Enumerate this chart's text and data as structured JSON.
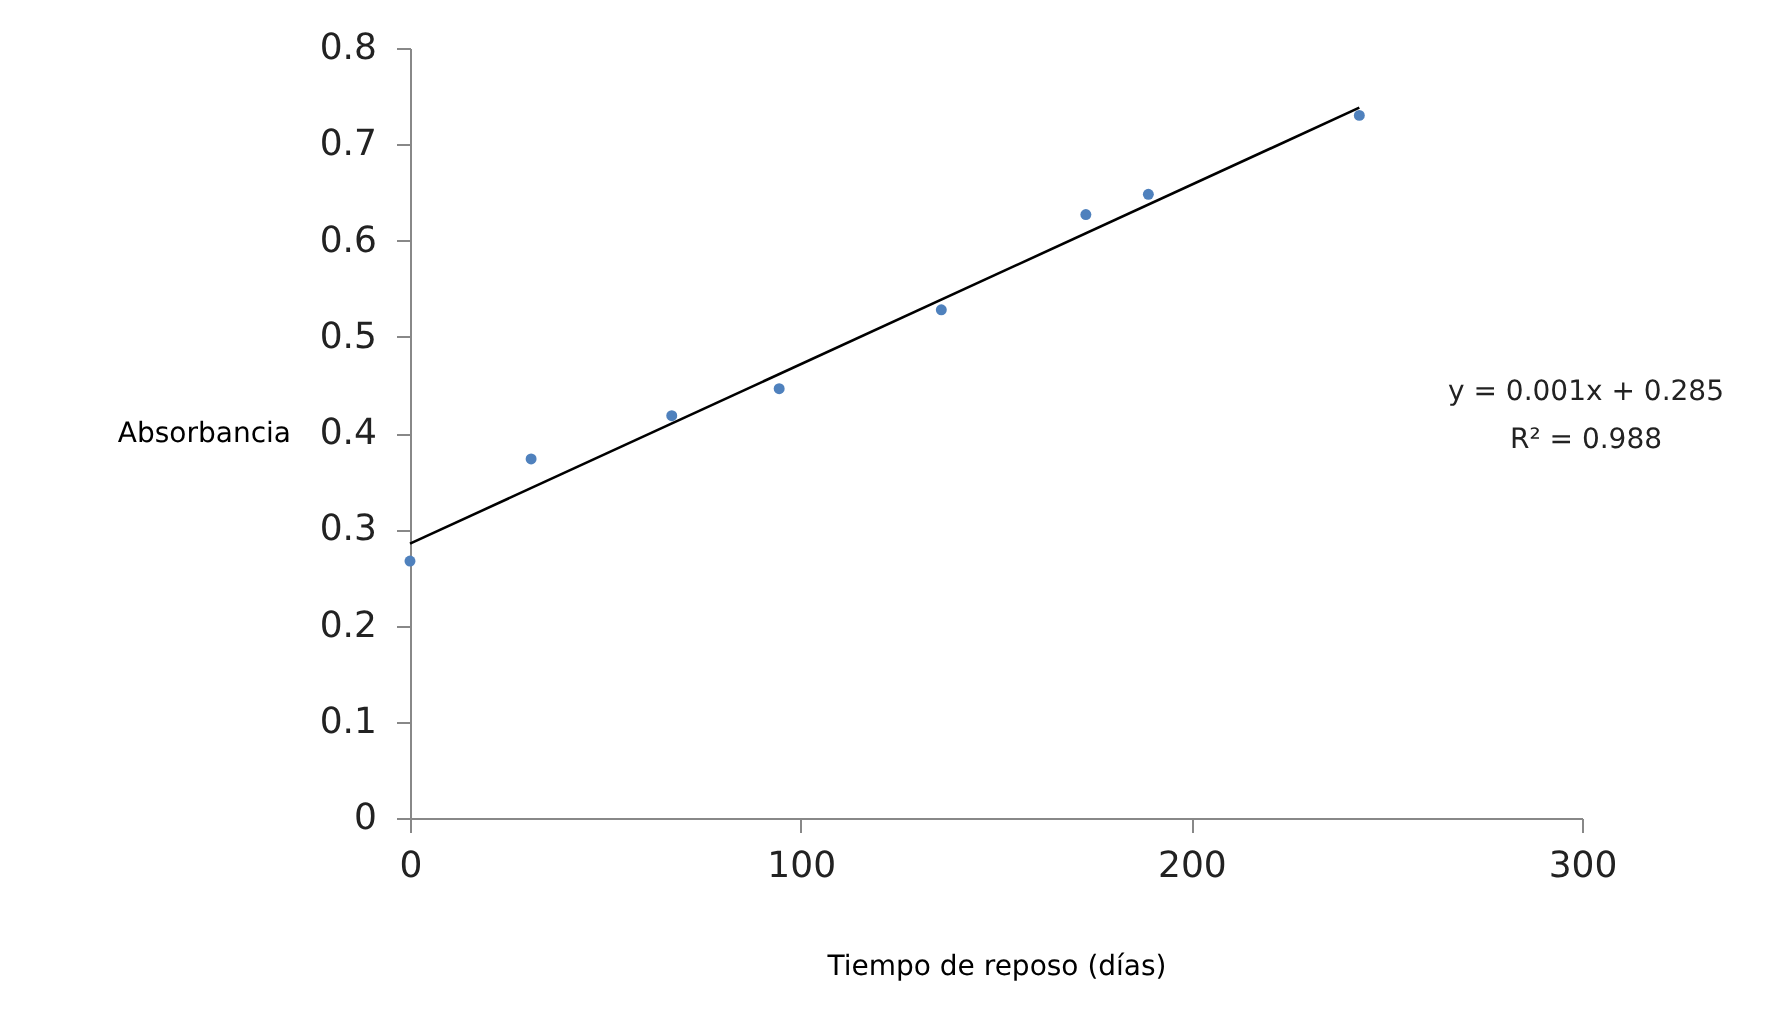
{
  "chart_data": {
    "type": "scatter",
    "xlabel": "Tiempo de reposo (días)",
    "ylabel": "Absorbancia",
    "x": [
      0,
      31,
      67,
      94.5,
      136,
      173,
      189,
      243
    ],
    "series": [
      {
        "color": "#4f81bd",
        "marker": "circle",
        "values": [
          0.267,
          0.373,
          0.418,
          0.446,
          0.528,
          0.627,
          0.648,
          0.73
        ]
      },
      {
        "type": "line",
        "color": "#000000",
        "line_style": "solid",
        "x": [
          0,
          243
        ],
        "values": [
          0.285,
          0.738
        ]
      }
    ],
    "xlim": [
      0,
      300
    ],
    "xticks": [
      0,
      100,
      200,
      300
    ],
    "ylim": [
      0,
      0.8
    ],
    "yticks": [
      0,
      0.1,
      0.2,
      0.3,
      0.4,
      0.5,
      0.6,
      0.7,
      0.8
    ],
    "grid": false,
    "annotations": [
      "y = 0.001x + 0.285",
      "R² = 0.988"
    ]
  }
}
